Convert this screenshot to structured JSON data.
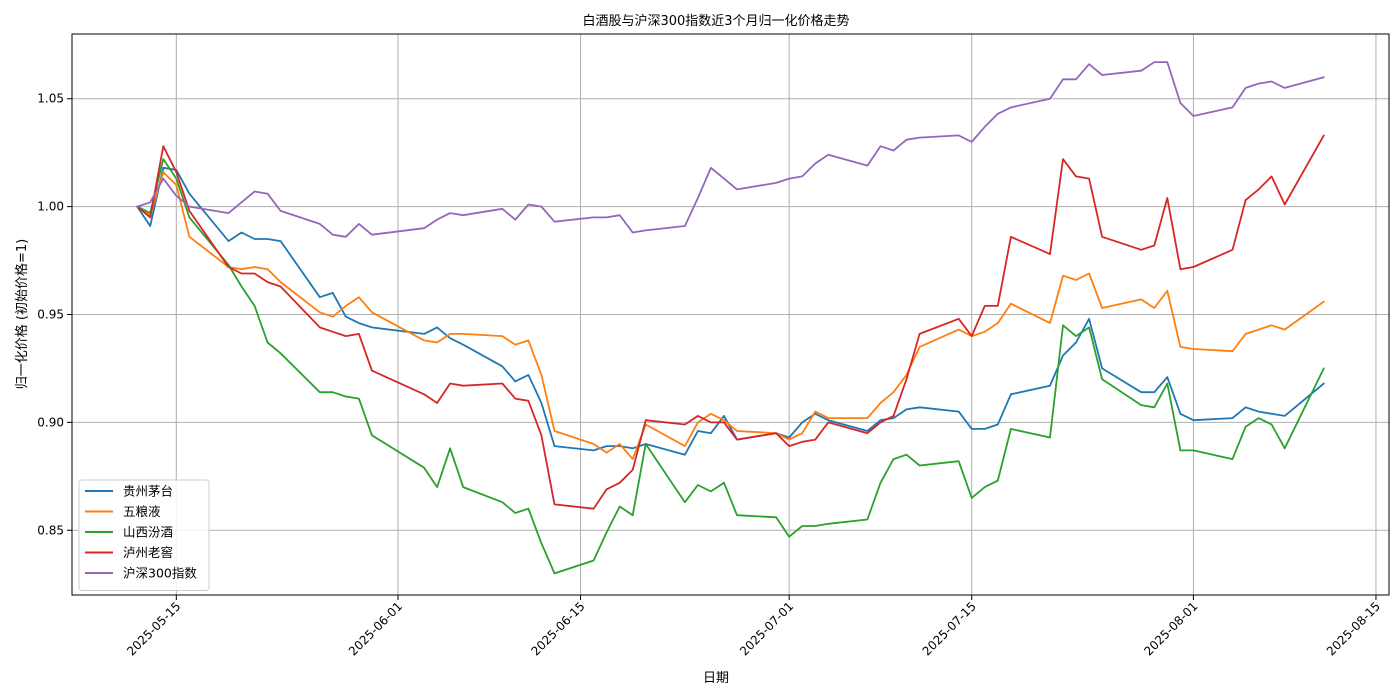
{
  "chart_data": {
    "type": "line",
    "title": "白酒股与沪深300指数近3个月归一化价格走势",
    "xlabel": "日期",
    "ylabel": "归一化价格 (初始价格=1)",
    "xlim": [
      "2025-05-07",
      "2025-08-16"
    ],
    "ylim": [
      0.82,
      1.08
    ],
    "x_ticks": [
      "2025-05-15",
      "2025-06-01",
      "2025-06-15",
      "2025-07-01",
      "2025-07-15",
      "2025-08-01",
      "2025-08-15"
    ],
    "y_ticks": [
      0.85,
      0.9,
      0.95,
      1.0,
      1.05
    ],
    "y_tick_labels": [
      "0.85",
      "0.90",
      "0.95",
      "1.00",
      "1.05"
    ],
    "grid": true,
    "legend_position": "lower-left",
    "dates": [
      "2025-05-12",
      "2025-05-13",
      "2025-05-14",
      "2025-05-15",
      "2025-05-16",
      "2025-05-19",
      "2025-05-20",
      "2025-05-21",
      "2025-05-22",
      "2025-05-23",
      "2025-05-26",
      "2025-05-27",
      "2025-05-28",
      "2025-05-29",
      "2025-05-30",
      "2025-06-03",
      "2025-06-04",
      "2025-06-05",
      "2025-06-06",
      "2025-06-09",
      "2025-06-10",
      "2025-06-11",
      "2025-06-12",
      "2025-06-13",
      "2025-06-16",
      "2025-06-17",
      "2025-06-18",
      "2025-06-19",
      "2025-06-20",
      "2025-06-23",
      "2025-06-24",
      "2025-06-25",
      "2025-06-26",
      "2025-06-27",
      "2025-06-30",
      "2025-07-01",
      "2025-07-02",
      "2025-07-03",
      "2025-07-04",
      "2025-07-07",
      "2025-07-08",
      "2025-07-09",
      "2025-07-10",
      "2025-07-11",
      "2025-07-14",
      "2025-07-15",
      "2025-07-16",
      "2025-07-17",
      "2025-07-18",
      "2025-07-21",
      "2025-07-22",
      "2025-07-23",
      "2025-07-24",
      "2025-07-25",
      "2025-07-28",
      "2025-07-29",
      "2025-07-30",
      "2025-07-31",
      "2025-08-01",
      "2025-08-04",
      "2025-08-05",
      "2025-08-06",
      "2025-08-07",
      "2025-08-08",
      "2025-08-11"
    ],
    "series": [
      {
        "name": "贵州茅台",
        "color": "#1f77b4",
        "values": [
          1.0,
          0.991,
          1.018,
          1.017,
          1.006,
          0.984,
          0.988,
          0.985,
          0.985,
          0.984,
          0.958,
          0.96,
          0.949,
          0.946,
          0.944,
          0.941,
          0.944,
          0.939,
          0.936,
          0.926,
          0.919,
          0.922,
          0.909,
          0.889,
          0.887,
          0.889,
          0.889,
          0.888,
          0.89,
          0.885,
          0.896,
          0.895,
          0.903,
          0.892,
          0.895,
          0.893,
          0.9,
          0.904,
          0.901,
          0.896,
          0.901,
          0.902,
          0.906,
          0.907,
          0.905,
          0.897,
          0.897,
          0.899,
          0.913,
          0.917,
          0.931,
          0.937,
          0.948,
          0.925,
          0.914,
          0.914,
          0.921,
          0.904,
          0.901,
          0.902,
          0.907,
          0.905,
          0.904,
          0.903,
          0.918
        ]
      },
      {
        "name": "五粮液",
        "color": "#ff7f0e",
        "values": [
          1.0,
          0.996,
          1.016,
          1.01,
          0.986,
          0.972,
          0.971,
          0.972,
          0.971,
          0.965,
          0.951,
          0.949,
          0.954,
          0.958,
          0.951,
          0.938,
          0.937,
          0.941,
          0.941,
          0.94,
          0.936,
          0.938,
          0.922,
          0.896,
          0.89,
          0.886,
          0.89,
          0.883,
          0.899,
          0.889,
          0.9,
          0.904,
          0.901,
          0.896,
          0.895,
          0.892,
          0.895,
          0.905,
          0.902,
          0.902,
          0.909,
          0.914,
          0.922,
          0.935,
          0.943,
          0.94,
          0.942,
          0.946,
          0.955,
          0.946,
          0.968,
          0.966,
          0.969,
          0.953,
          0.957,
          0.953,
          0.961,
          0.935,
          0.934,
          0.933,
          0.941,
          0.943,
          0.945,
          0.943,
          0.956
        ]
      },
      {
        "name": "山西汾酒",
        "color": "#2ca02c",
        "values": [
          1.0,
          0.997,
          1.022,
          1.013,
          0.995,
          0.973,
          0.963,
          0.954,
          0.937,
          0.932,
          0.914,
          0.914,
          0.912,
          0.911,
          0.894,
          0.879,
          0.87,
          0.888,
          0.87,
          0.863,
          0.858,
          0.86,
          0.844,
          0.83,
          0.836,
          0.849,
          0.861,
          0.857,
          0.89,
          0.863,
          0.871,
          0.868,
          0.872,
          0.857,
          0.856,
          0.847,
          0.852,
          0.852,
          0.853,
          0.855,
          0.872,
          0.883,
          0.885,
          0.88,
          0.882,
          0.865,
          0.87,
          0.873,
          0.897,
          0.893,
          0.945,
          0.94,
          0.944,
          0.92,
          0.908,
          0.907,
          0.918,
          0.887,
          0.887,
          0.883,
          0.898,
          0.902,
          0.899,
          0.888,
          0.925
        ]
      },
      {
        "name": "泸州老窖",
        "color": "#d62728",
        "values": [
          1.0,
          0.995,
          1.028,
          1.016,
          0.998,
          0.972,
          0.969,
          0.969,
          0.965,
          0.963,
          0.944,
          0.942,
          0.94,
          0.941,
          0.924,
          0.913,
          0.909,
          0.918,
          0.917,
          0.918,
          0.911,
          0.91,
          0.894,
          0.862,
          0.86,
          0.869,
          0.872,
          0.878,
          0.901,
          0.899,
          0.903,
          0.9,
          0.9,
          0.892,
          0.895,
          0.889,
          0.891,
          0.892,
          0.9,
          0.895,
          0.9,
          0.903,
          0.92,
          0.941,
          0.948,
          0.94,
          0.954,
          0.954,
          0.986,
          0.978,
          1.022,
          1.014,
          1.013,
          0.986,
          0.98,
          0.982,
          1.004,
          0.971,
          0.972,
          0.98,
          1.003,
          1.008,
          1.014,
          1.001,
          1.033
        ]
      },
      {
        "name": "沪深300指数",
        "color": "#9467bd",
        "values": [
          1.0,
          1.002,
          1.013,
          1.005,
          1.0,
          0.997,
          1.002,
          1.007,
          1.006,
          0.998,
          0.992,
          0.987,
          0.986,
          0.992,
          0.987,
          0.99,
          0.994,
          0.997,
          0.996,
          0.999,
          0.994,
          1.001,
          1.0,
          0.993,
          0.995,
          0.995,
          0.996,
          0.988,
          0.989,
          0.991,
          1.004,
          1.018,
          1.013,
          1.008,
          1.011,
          1.013,
          1.014,
          1.02,
          1.024,
          1.019,
          1.028,
          1.026,
          1.031,
          1.032,
          1.033,
          1.03,
          1.037,
          1.043,
          1.046,
          1.05,
          1.059,
          1.059,
          1.066,
          1.061,
          1.063,
          1.067,
          1.067,
          1.048,
          1.042,
          1.046,
          1.055,
          1.057,
          1.058,
          1.055,
          1.06
        ]
      }
    ]
  }
}
